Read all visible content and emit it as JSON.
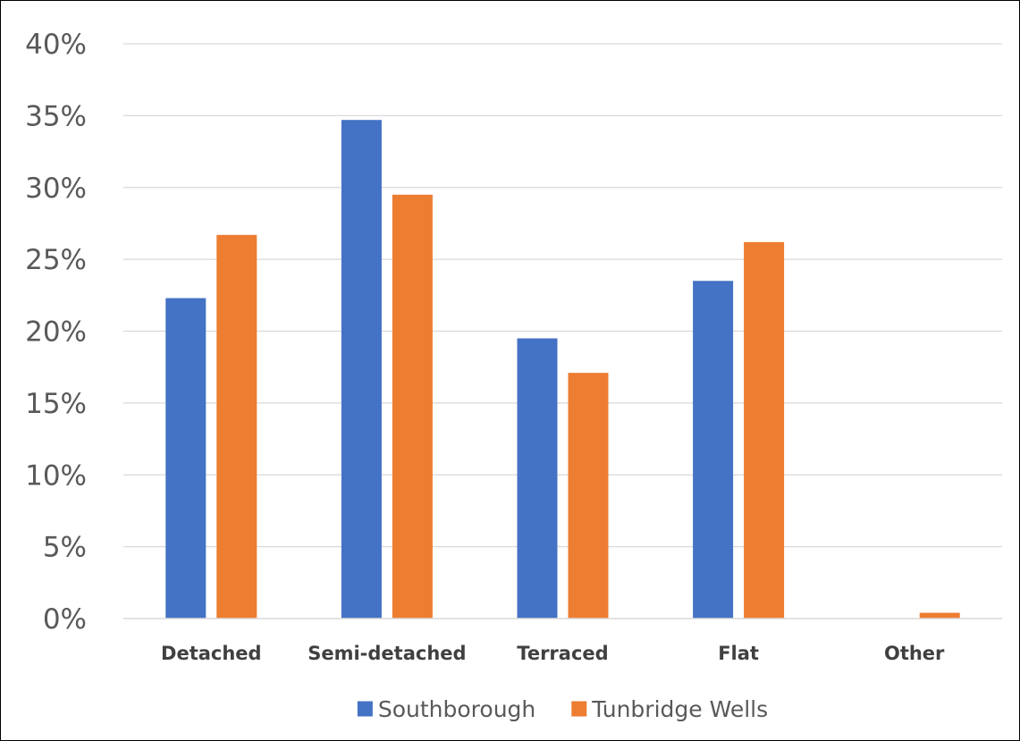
{
  "chart_data": {
    "type": "bar",
    "title": "",
    "xlabel": "",
    "ylabel": "",
    "categories": [
      "Detached",
      "Semi-detached",
      "Terraced",
      "Flat",
      "Other"
    ],
    "series": [
      {
        "name": "Southborough",
        "color": "#4472c4",
        "values": [
          22.3,
          34.7,
          19.5,
          23.5,
          0.0
        ]
      },
      {
        "name": "Tunbridge Wells",
        "color": "#ed7d31",
        "values": [
          26.7,
          29.5,
          17.1,
          26.2,
          0.4
        ]
      }
    ],
    "ylim": [
      0,
      40
    ],
    "yticks": [
      0,
      5,
      10,
      15,
      20,
      25,
      30,
      35,
      40
    ],
    "ytick_labels": [
      "0%",
      "5%",
      "10%",
      "15%",
      "20%",
      "25%",
      "30%",
      "35%",
      "40%"
    ],
    "grid": true,
    "legend_position": "bottom"
  }
}
